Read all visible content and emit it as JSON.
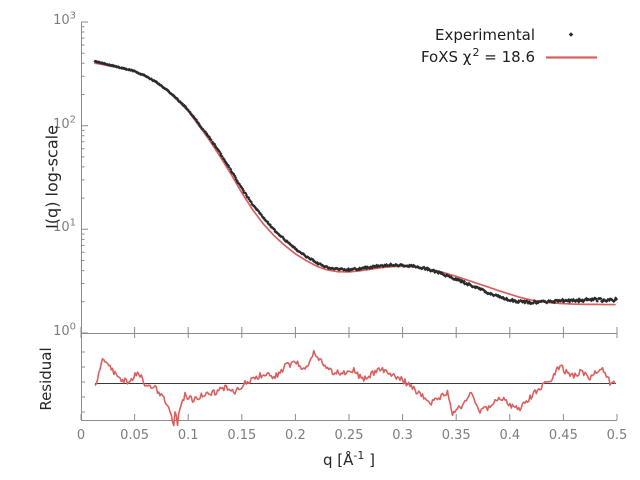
{
  "colors": {
    "background": "#ffffff",
    "experimental": "#2b2b2b",
    "model": "#d9605f",
    "axis": "#8c8c8c",
    "tick_label": "#7d7d7d",
    "text": "#262626",
    "baseline": "#3a3a3a"
  },
  "legend": {
    "entries": [
      {
        "label": "Experimental",
        "marker": "diamond",
        "color": "#2b2b2b"
      },
      {
        "prefix": "FoXS χ",
        "sup": "2",
        "suffix": " = 18.6",
        "marker": "line",
        "color": "#d9605f",
        "chi2": 18.6
      }
    ]
  },
  "chart_data": {
    "type": "line",
    "xlabel": "q [Å⁻¹]",
    "xlabel_parts": {
      "prefix": "q [Å",
      "sup": "-1",
      "suffix": " ]"
    },
    "xlim": [
      0,
      0.5
    ],
    "x_ticks": [
      0,
      0.05,
      0.1,
      0.15,
      0.2,
      0.25,
      0.3,
      0.35,
      0.4,
      0.45,
      0.5
    ],
    "x_tick_labels": [
      "0",
      "0.05",
      "0.1",
      "0.15",
      "0.2",
      "0.25",
      "0.3",
      "0.35",
      "0.4",
      "0.45",
      "0.5"
    ],
    "y_ticks_top": [
      {
        "base": "10",
        "exp": "3",
        "value": 1000
      },
      {
        "base": "10",
        "exp": "2",
        "value": 100
      },
      {
        "base": "10",
        "exp": "1",
        "value": 10
      },
      {
        "base": "10",
        "exp": "0",
        "value": 1
      }
    ],
    "panels": [
      {
        "name": "intensity",
        "ylabel": "I(q) log-scale",
        "yscale": "log",
        "ylim": [
          1,
          1000
        ],
        "series": [
          {
            "name": "Experimental",
            "style": "points",
            "marker": "diamond",
            "color": "#2b2b2b",
            "points": [
              [
                0.013,
                415
              ],
              [
                0.02,
                400
              ],
              [
                0.03,
                378
              ],
              [
                0.04,
                356
              ],
              [
                0.05,
                336
              ],
              [
                0.06,
                302
              ],
              [
                0.07,
                264
              ],
              [
                0.08,
                222
              ],
              [
                0.09,
                180
              ],
              [
                0.1,
                142
              ],
              [
                0.11,
                104
              ],
              [
                0.12,
                76
              ],
              [
                0.13,
                54
              ],
              [
                0.14,
                37
              ],
              [
                0.15,
                25
              ],
              [
                0.16,
                17.5
              ],
              [
                0.17,
                13.0
              ],
              [
                0.18,
                10.0
              ],
              [
                0.19,
                7.9
              ],
              [
                0.2,
                6.5
              ],
              [
                0.21,
                5.5
              ],
              [
                0.22,
                4.75
              ],
              [
                0.23,
                4.3
              ],
              [
                0.24,
                4.1
              ],
              [
                0.25,
                4.08
              ],
              [
                0.26,
                4.18
              ],
              [
                0.27,
                4.32
              ],
              [
                0.28,
                4.48
              ],
              [
                0.29,
                4.55
              ],
              [
                0.3,
                4.5
              ],
              [
                0.31,
                4.4
              ],
              [
                0.32,
                4.22
              ],
              [
                0.33,
                3.95
              ],
              [
                0.34,
                3.62
              ],
              [
                0.35,
                3.3
              ],
              [
                0.36,
                3.0
              ],
              [
                0.37,
                2.7
              ],
              [
                0.38,
                2.45
              ],
              [
                0.39,
                2.25
              ],
              [
                0.4,
                2.1
              ],
              [
                0.41,
                2.0
              ],
              [
                0.42,
                1.97
              ],
              [
                0.43,
                2.0
              ],
              [
                0.44,
                2.02
              ],
              [
                0.45,
                2.05
              ],
              [
                0.46,
                2.05
              ],
              [
                0.47,
                2.08
              ],
              [
                0.48,
                2.1
              ],
              [
                0.49,
                2.07
              ],
              [
                0.4995,
                2.1
              ]
            ]
          },
          {
            "name": "FoXS",
            "chi2": 18.6,
            "style": "line",
            "color": "#d9605f",
            "points": [
              [
                0.013,
                400
              ],
              [
                0.02,
                390
              ],
              [
                0.03,
                372
              ],
              [
                0.04,
                352
              ],
              [
                0.05,
                334
              ],
              [
                0.06,
                300
              ],
              [
                0.07,
                262
              ],
              [
                0.08,
                219
              ],
              [
                0.09,
                176
              ],
              [
                0.1,
                138
              ],
              [
                0.11,
                100
              ],
              [
                0.12,
                72
              ],
              [
                0.13,
                50
              ],
              [
                0.14,
                34
              ],
              [
                0.15,
                22.5
              ],
              [
                0.16,
                15.5
              ],
              [
                0.17,
                11.3
              ],
              [
                0.18,
                8.7
              ],
              [
                0.19,
                7.0
              ],
              [
                0.2,
                5.8
              ],
              [
                0.21,
                5.0
              ],
              [
                0.22,
                4.4
              ],
              [
                0.23,
                4.05
              ],
              [
                0.24,
                3.9
              ],
              [
                0.25,
                3.88
              ],
              [
                0.26,
                3.98
              ],
              [
                0.27,
                4.12
              ],
              [
                0.28,
                4.27
              ],
              [
                0.29,
                4.37
              ],
              [
                0.3,
                4.4
              ],
              [
                0.31,
                4.35
              ],
              [
                0.32,
                4.22
              ],
              [
                0.33,
                4.02
              ],
              [
                0.34,
                3.78
              ],
              [
                0.35,
                3.52
              ],
              [
                0.36,
                3.25
              ],
              [
                0.37,
                3.0
              ],
              [
                0.38,
                2.77
              ],
              [
                0.39,
                2.55
              ],
              [
                0.4,
                2.37
              ],
              [
                0.41,
                2.2
              ],
              [
                0.42,
                2.08
              ],
              [
                0.43,
                2.0
              ],
              [
                0.44,
                1.95
              ],
              [
                0.45,
                1.92
              ],
              [
                0.46,
                1.9
              ],
              [
                0.47,
                1.89
              ],
              [
                0.48,
                1.89
              ],
              [
                0.49,
                1.88
              ],
              [
                0.4995,
                1.88
              ]
            ]
          }
        ]
      },
      {
        "name": "residual",
        "ylabel": "Residual",
        "baseline": 1.0,
        "series": [
          {
            "name": "Residual",
            "style": "line",
            "color": "#d9605f",
            "points": [
              [
                0.014,
                0.97
              ],
              [
                0.02,
                1.4
              ],
              [
                0.027,
                1.27
              ],
              [
                0.034,
                1.1
              ],
              [
                0.044,
                1.02
              ],
              [
                0.053,
                1.17
              ],
              [
                0.062,
                0.93
              ],
              [
                0.069,
                0.92
              ],
              [
                0.076,
                0.77
              ],
              [
                0.082,
                0.63
              ],
              [
                0.085,
                0.4
              ],
              [
                0.0865,
                0.3
              ],
              [
                0.088,
                0.55
              ],
              [
                0.09,
                0.32
              ],
              [
                0.092,
                0.6
              ],
              [
                0.097,
                0.8
              ],
              [
                0.104,
                0.72
              ],
              [
                0.113,
                0.8
              ],
              [
                0.125,
                0.85
              ],
              [
                0.134,
                0.93
              ],
              [
                0.144,
                0.85
              ],
              [
                0.153,
                1.0
              ],
              [
                0.162,
                1.08
              ],
              [
                0.172,
                1.17
              ],
              [
                0.181,
                1.1
              ],
              [
                0.19,
                1.27
              ],
              [
                0.2,
                1.35
              ],
              [
                0.209,
                1.22
              ],
              [
                0.218,
                1.52
              ],
              [
                0.228,
                1.27
              ],
              [
                0.237,
                1.17
              ],
              [
                0.246,
                1.18
              ],
              [
                0.254,
                1.22
              ],
              [
                0.263,
                1.05
              ],
              [
                0.279,
                1.25
              ],
              [
                0.291,
                1.13
              ],
              [
                0.3,
                1.05
              ],
              [
                0.309,
                0.92
              ],
              [
                0.319,
                0.77
              ],
              [
                0.328,
                0.67
              ],
              [
                0.342,
                0.85
              ],
              [
                0.346,
                0.47
              ],
              [
                0.354,
                0.6
              ],
              [
                0.363,
                0.85
              ],
              [
                0.372,
                0.52
              ],
              [
                0.382,
                0.6
              ],
              [
                0.391,
                0.77
              ],
              [
                0.4,
                0.63
              ],
              [
                0.41,
                0.58
              ],
              [
                0.419,
                0.75
              ],
              [
                0.428,
                0.93
              ],
              [
                0.438,
                1.02
              ],
              [
                0.447,
                1.3
              ],
              [
                0.456,
                1.1
              ],
              [
                0.466,
                1.18
              ],
              [
                0.475,
                1.1
              ],
              [
                0.485,
                1.25
              ],
              [
                0.494,
                1.0
              ],
              [
                0.499,
                0.97
              ]
            ]
          }
        ]
      }
    ]
  }
}
